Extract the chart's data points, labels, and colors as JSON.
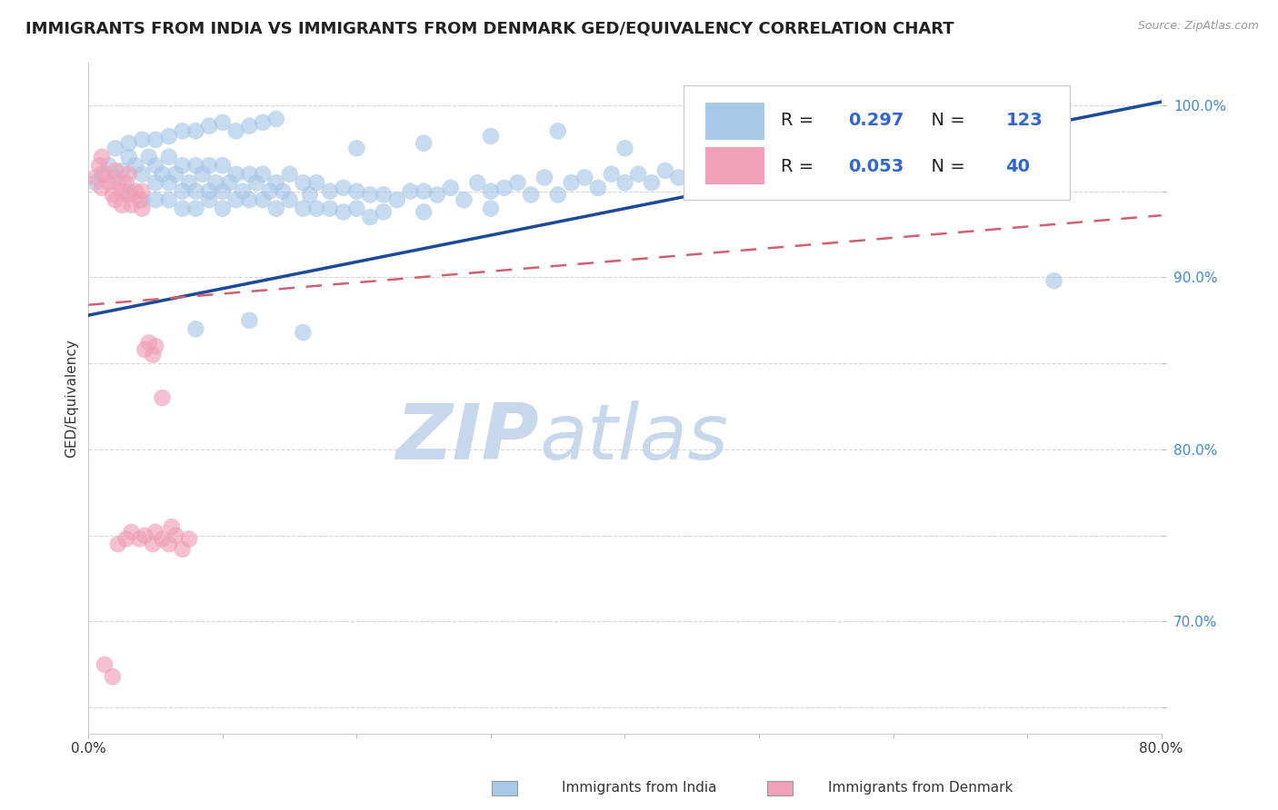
{
  "title": "IMMIGRANTS FROM INDIA VS IMMIGRANTS FROM DENMARK GED/EQUIVALENCY CORRELATION CHART",
  "source": "Source: ZipAtlas.com",
  "ylabel": "GED/Equivalency",
  "legend_label_blue": "Immigrants from India",
  "legend_label_pink": "Immigrants from Denmark",
  "R_blue": 0.297,
  "N_blue": 123,
  "R_pink": 0.053,
  "N_pink": 40,
  "xlim": [
    0.0,
    0.8
  ],
  "ylim": [
    0.635,
    1.025
  ],
  "color_blue": "#A8C8E8",
  "color_pink": "#F0A0B8",
  "trendline_blue": "#1A4A9A",
  "trendline_pink": "#D06070",
  "tick_color_right": "#4488CC",
  "watermark_zip": "ZIP",
  "watermark_atlas": "atlas",
  "watermark_color": "#C8D8EC",
  "blue_x": [
    0.005,
    0.01,
    0.015,
    0.02,
    0.025,
    0.03,
    0.03,
    0.035,
    0.04,
    0.04,
    0.045,
    0.05,
    0.05,
    0.05,
    0.055,
    0.06,
    0.06,
    0.06,
    0.065,
    0.07,
    0.07,
    0.07,
    0.075,
    0.08,
    0.08,
    0.08,
    0.085,
    0.09,
    0.09,
    0.09,
    0.095,
    0.1,
    0.1,
    0.1,
    0.105,
    0.11,
    0.11,
    0.115,
    0.12,
    0.12,
    0.125,
    0.13,
    0.13,
    0.135,
    0.14,
    0.14,
    0.145,
    0.15,
    0.15,
    0.16,
    0.16,
    0.165,
    0.17,
    0.17,
    0.18,
    0.18,
    0.19,
    0.19,
    0.2,
    0.2,
    0.21,
    0.21,
    0.22,
    0.22,
    0.23,
    0.24,
    0.25,
    0.25,
    0.26,
    0.27,
    0.28,
    0.29,
    0.3,
    0.3,
    0.31,
    0.32,
    0.33,
    0.34,
    0.35,
    0.36,
    0.37,
    0.38,
    0.39,
    0.4,
    0.41,
    0.42,
    0.43,
    0.44,
    0.45,
    0.46,
    0.47,
    0.48,
    0.5,
    0.52,
    0.54,
    0.56,
    0.58,
    0.6,
    0.62,
    0.64,
    0.02,
    0.03,
    0.04,
    0.05,
    0.06,
    0.07,
    0.08,
    0.09,
    0.1,
    0.11,
    0.12,
    0.13,
    0.14,
    0.2,
    0.25,
    0.3,
    0.35,
    0.4,
    0.45,
    0.5,
    0.72,
    0.08,
    0.12,
    0.16
  ],
  "blue_y": [
    0.955,
    0.96,
    0.965,
    0.958,
    0.962,
    0.97,
    0.95,
    0.965,
    0.96,
    0.945,
    0.97,
    0.965,
    0.955,
    0.945,
    0.96,
    0.97,
    0.955,
    0.945,
    0.96,
    0.965,
    0.95,
    0.94,
    0.955,
    0.965,
    0.95,
    0.94,
    0.96,
    0.965,
    0.95,
    0.945,
    0.955,
    0.965,
    0.95,
    0.94,
    0.955,
    0.96,
    0.945,
    0.95,
    0.96,
    0.945,
    0.955,
    0.96,
    0.945,
    0.95,
    0.955,
    0.94,
    0.95,
    0.96,
    0.945,
    0.955,
    0.94,
    0.948,
    0.955,
    0.94,
    0.95,
    0.94,
    0.952,
    0.938,
    0.95,
    0.94,
    0.948,
    0.935,
    0.948,
    0.938,
    0.945,
    0.95,
    0.95,
    0.938,
    0.948,
    0.952,
    0.945,
    0.955,
    0.95,
    0.94,
    0.952,
    0.955,
    0.948,
    0.958,
    0.948,
    0.955,
    0.958,
    0.952,
    0.96,
    0.955,
    0.96,
    0.955,
    0.962,
    0.958,
    0.96,
    0.962,
    0.965,
    0.96,
    0.965,
    0.968,
    0.97,
    0.968,
    0.97,
    0.972,
    0.975,
    0.97,
    0.975,
    0.978,
    0.98,
    0.98,
    0.982,
    0.985,
    0.985,
    0.988,
    0.99,
    0.985,
    0.988,
    0.99,
    0.992,
    0.975,
    0.978,
    0.982,
    0.985,
    0.975,
    0.98,
    0.983,
    0.898,
    0.87,
    0.875,
    0.868
  ],
  "pink_x": [
    0.005,
    0.008,
    0.01,
    0.01,
    0.012,
    0.015,
    0.018,
    0.02,
    0.02,
    0.022,
    0.025,
    0.025,
    0.028,
    0.03,
    0.03,
    0.032,
    0.035,
    0.038,
    0.04,
    0.04,
    0.042,
    0.045,
    0.048,
    0.05,
    0.05,
    0.055,
    0.06,
    0.065,
    0.07,
    0.075,
    0.012,
    0.018,
    0.022,
    0.028,
    0.032,
    0.038,
    0.042,
    0.048,
    0.055,
    0.062
  ],
  "pink_y": [
    0.958,
    0.965,
    0.952,
    0.97,
    0.96,
    0.955,
    0.948,
    0.962,
    0.945,
    0.955,
    0.95,
    0.942,
    0.955,
    0.948,
    0.96,
    0.942,
    0.95,
    0.945,
    0.95,
    0.94,
    0.858,
    0.862,
    0.855,
    0.86,
    0.752,
    0.748,
    0.745,
    0.75,
    0.742,
    0.748,
    0.675,
    0.668,
    0.745,
    0.748,
    0.752,
    0.748,
    0.75,
    0.745,
    0.83,
    0.755
  ],
  "trend_blue_x0": 0.0,
  "trend_blue_y0": 0.878,
  "trend_blue_x1": 0.8,
  "trend_blue_y1": 1.002,
  "trend_pink_x0": 0.0,
  "trend_pink_y0": 0.884,
  "trend_pink_x1": 0.8,
  "trend_pink_y1": 0.936
}
